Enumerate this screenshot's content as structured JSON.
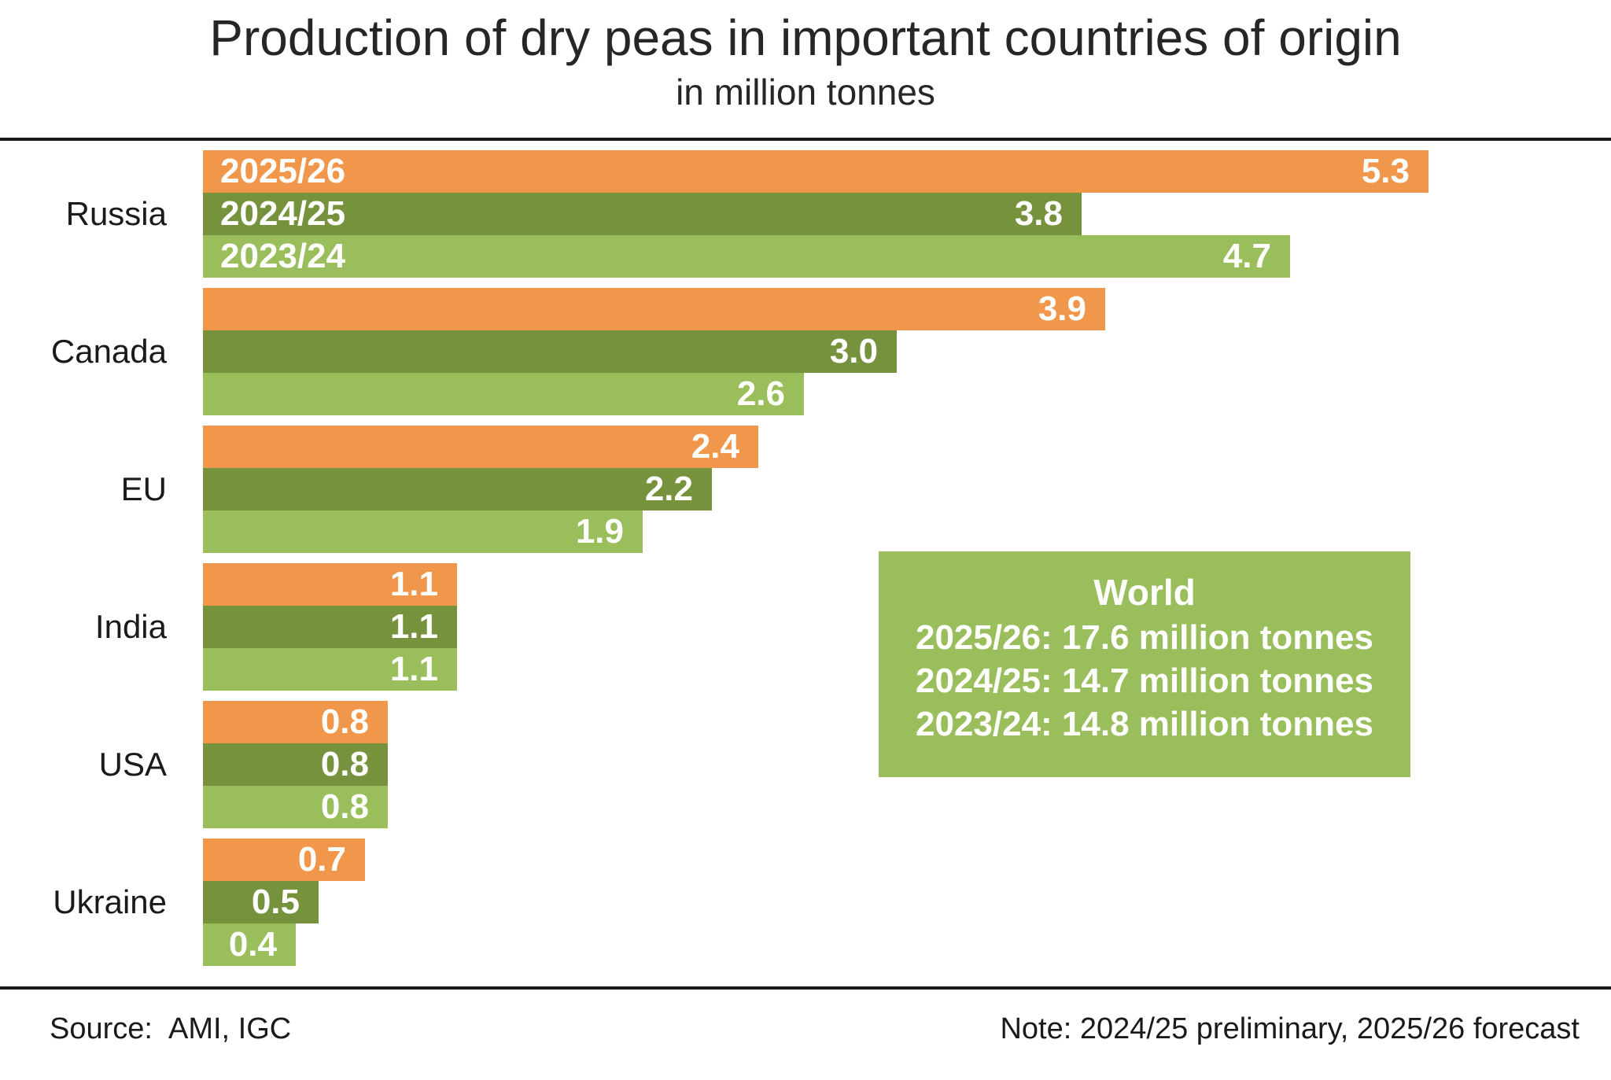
{
  "title": "Production of dry peas in important countries of origin",
  "subtitle": "in million tonnes",
  "chart_data": {
    "type": "bar",
    "orientation": "horizontal",
    "unit": "million tonnes",
    "title": "Production of dry peas in important countries of origin",
    "subtitle": "in million tonnes",
    "categories": [
      "Russia",
      "Canada",
      "EU",
      "India",
      "USA",
      "Ukraine"
    ],
    "series": [
      {
        "name": "2025/26",
        "color": "#F1974B",
        "values": [
          5.3,
          3.9,
          2.4,
          1.1,
          0.8,
          0.7
        ]
      },
      {
        "name": "2024/25",
        "color": "#77923C",
        "values": [
          3.8,
          3.0,
          2.2,
          1.1,
          0.8,
          0.5
        ]
      },
      {
        "name": "2023/24",
        "color": "#9ABE5B",
        "values": [
          4.7,
          2.6,
          1.9,
          1.1,
          0.8,
          0.4
        ]
      }
    ],
    "xlim": [
      0,
      6.08
    ],
    "grid": false,
    "value_labels": "inside-end-white-bold",
    "series_labels_shown_inside_first_group": true,
    "legend_position": "none"
  },
  "annotation_box": {
    "background_color": "#9ABE5B",
    "title": "World",
    "lines": [
      "2025/26: 17.6 million tonnes",
      "2024/25: 14.7 million tonnes",
      "2023/24: 14.8 million tonnes"
    ]
  },
  "footer": {
    "source_label": "Source:",
    "source_value": "AMI, IGC",
    "note": "Note: 2024/25 preliminary, 2025/26 forecast"
  },
  "colors": {
    "series_2025_26": "#F1974B",
    "series_2024_25": "#77923C",
    "series_2023_24": "#9ABE5B",
    "text": "#1A1A1A",
    "rule": "#1A1A1A",
    "background": "#FFFFFF",
    "bar_label_text": "#FFFFFF"
  }
}
